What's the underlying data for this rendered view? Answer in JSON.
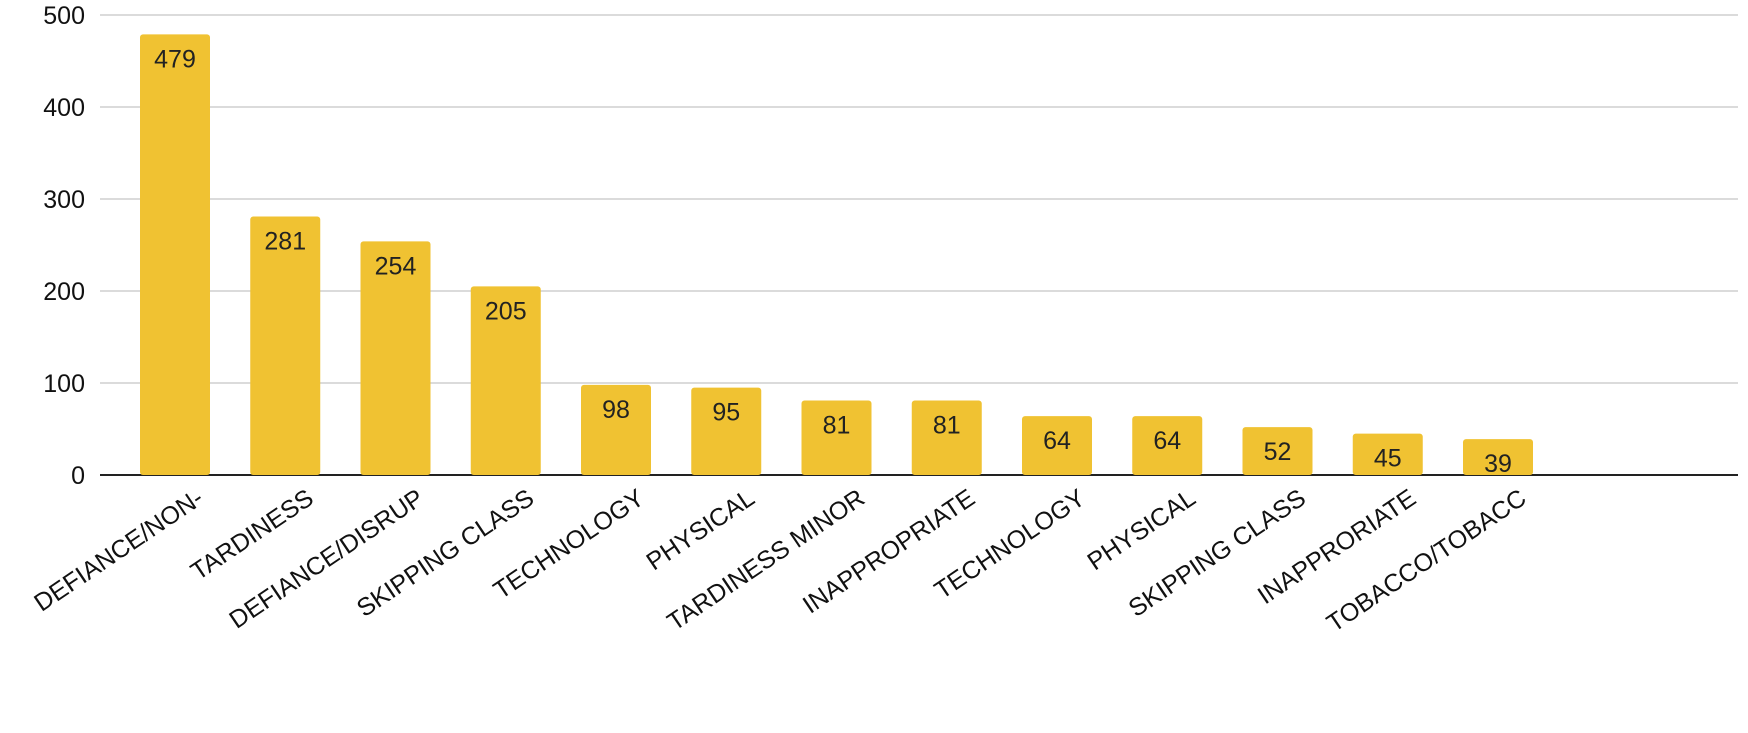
{
  "chart_data": {
    "type": "bar",
    "title": "",
    "xlabel": "",
    "ylabel": "",
    "categories": [
      "DEFIANCE/NON-",
      "TARDINESS",
      "DEFIANCE/DISRUP",
      "SKIPPING CLASS",
      "TECHNOLOGY",
      "PHYSICAL",
      "TARDINESS MINOR",
      "INAPPROPRIATE",
      "TECHNOLOGY",
      "PHYSICAL",
      "SKIPPING CLASS",
      "INAPPRORIATE",
      "TOBACCO/TOBACC"
    ],
    "values": [
      479,
      281,
      254,
      205,
      98,
      95,
      81,
      81,
      64,
      64,
      52,
      45,
      39
    ],
    "data_labels": [
      "479",
      "281",
      "254",
      "205",
      "98",
      "95",
      "81",
      "81",
      "64",
      "64",
      "52",
      "45",
      "39"
    ],
    "yticks": [
      0,
      100,
      200,
      300,
      400,
      500
    ],
    "ytick_labels": [
      "0",
      "100",
      "200",
      "300",
      "400",
      "500"
    ],
    "ylim": [
      0,
      500
    ],
    "grid": true,
    "legend": "none",
    "bar_color": "#f0c232"
  }
}
